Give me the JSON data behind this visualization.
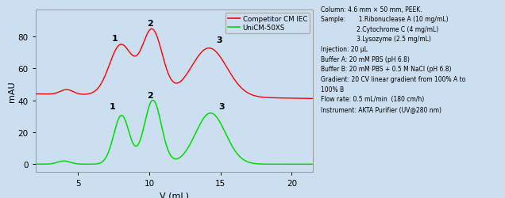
{
  "bg_color": "#ccdff0",
  "plot_bg_color": "#ccdff0",
  "xlabel": "V (mL)",
  "ylabel": "mAU",
  "xlim": [
    2.0,
    21.5
  ],
  "ylim": [
    -5,
    97
  ],
  "yticks": [
    0,
    20,
    40,
    60,
    80
  ],
  "xticks": [
    5,
    10,
    15,
    20
  ],
  "red_color": "#ff0000",
  "green_color": "#00dd00",
  "text_color": "#000000",
  "legend_entries": [
    "Competitor CM IEC",
    "UniCM-50XS"
  ],
  "info_text": "Column: 4.6 mm × 50 mm, PEEK.\nSample:       1.Ribonuclease A (10 mg/mL)\n                   2.Cytochrome C (4 mg/mL)       \n                   3.Lysozyme (2.5 mg/mL)\nInjection: 20 μL\nBuffer A: 20 mM PBS (pH 6.8)\nBuffer B: 20 mM PBS + 0.5 M NaCl (pH 6.8)\nGradient: 20 CV linear gradient from 100% A to\n100% B\nFlow rate: 0.5 mL/min  (180 cm/h)\nInstrument: AKTA Purifier (UV@280 nm)"
}
